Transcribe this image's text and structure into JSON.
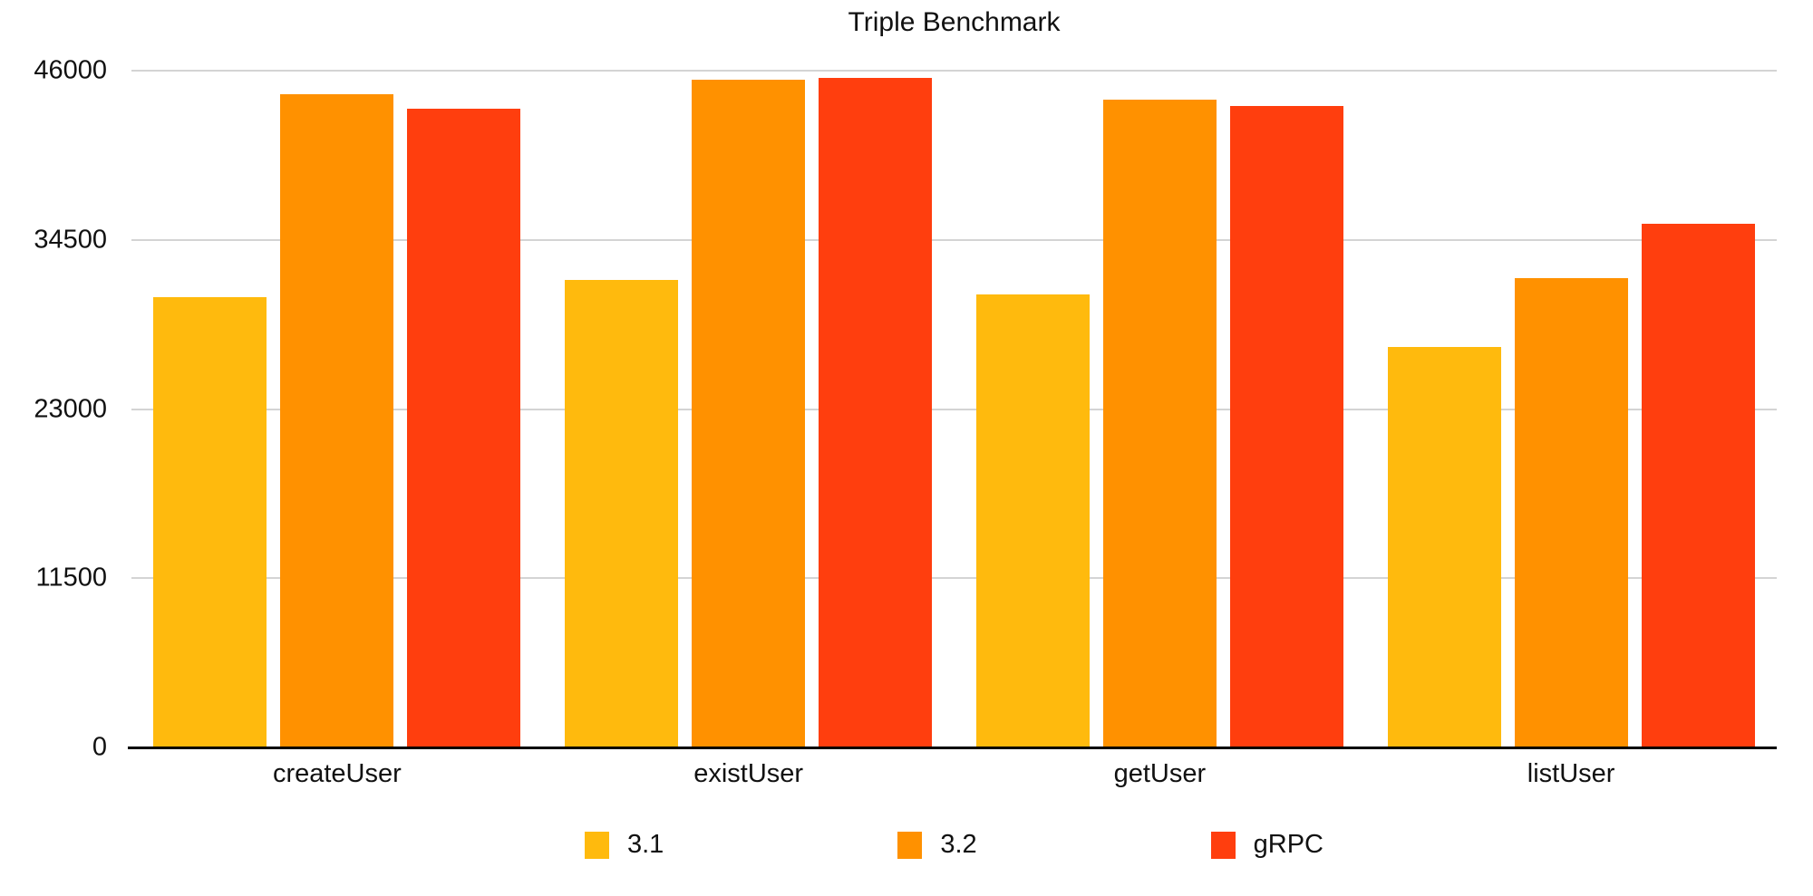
{
  "chart_data": {
    "type": "bar",
    "title": "Triple Benchmark",
    "categories": [
      "createUser",
      "existUser",
      "getUser",
      "listUser"
    ],
    "series": [
      {
        "name": "3.1",
        "color": "#FFBA0D",
        "values": [
          30600,
          31800,
          30800,
          27200
        ]
      },
      {
        "name": "3.2",
        "color": "#FF9100",
        "values": [
          44400,
          45400,
          44000,
          31900
        ]
      },
      {
        "name": "gRPC",
        "color": "#FF3E0E",
        "values": [
          43400,
          45500,
          43600,
          35600
        ]
      }
    ],
    "ylim": [
      0,
      46000
    ],
    "y_ticks": [
      0,
      11500,
      23000,
      34500,
      46000
    ],
    "grid": true,
    "legend_position": "bottom",
    "colors": {
      "gridline": "#D4D4D4",
      "axis": "#000000",
      "text": "#111111",
      "background": "#FFFFFF"
    }
  }
}
